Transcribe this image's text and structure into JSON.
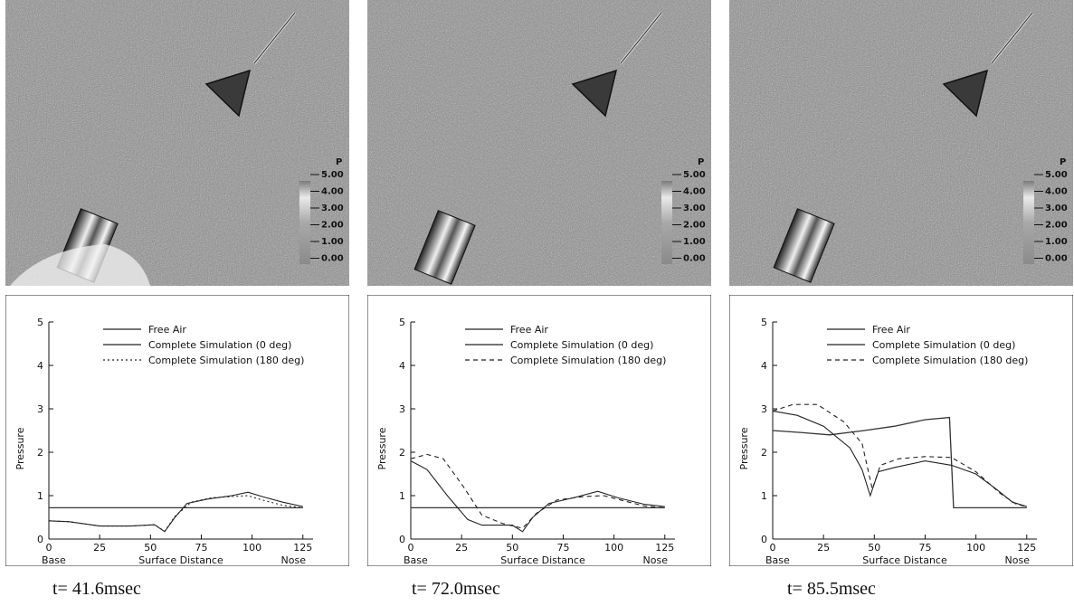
{
  "panels": [
    {
      "time_label": "t= 41.6msec",
      "colorbar": {
        "title": "P",
        "ticks": [
          "5.00",
          "4.00",
          "3.00",
          "2.00",
          "1.00",
          "0.00"
        ]
      }
    },
    {
      "time_label": "t= 72.0msec",
      "colorbar": {
        "title": "P",
        "ticks": [
          "5.00",
          "4.00",
          "3.00",
          "2.00",
          "1.00",
          "0.00"
        ]
      }
    },
    {
      "time_label": "t= 85.5msec",
      "colorbar": {
        "title": "P",
        "ticks": [
          "5.00",
          "4.00",
          "3.00",
          "2.00",
          "1.00",
          "0.00"
        ]
      }
    }
  ],
  "chart_data": [
    {
      "type": "line",
      "xlabel": "Surface Distance",
      "ylabel": "Pressure",
      "x_end_labels": [
        "Base",
        "Nose"
      ],
      "xlim": [
        0,
        130
      ],
      "ylim": [
        0,
        5
      ],
      "xticks": [
        "0",
        "25",
        "50",
        "75",
        "100",
        "125"
      ],
      "yticks": [
        "0",
        "1",
        "2",
        "3",
        "4",
        "5"
      ],
      "legend": [
        "Free Air",
        "Complete Simulation (0 deg)",
        "Complete Simulation (180 deg)"
      ],
      "series": [
        {
          "name": "Free Air",
          "style": "solid",
          "points": [
            [
              0,
              0.72
            ],
            [
              25,
              0.72
            ],
            [
              50,
              0.72
            ],
            [
              75,
              0.72
            ],
            [
              100,
              0.72
            ],
            [
              125,
              0.72
            ]
          ]
        },
        {
          "name": "Complete Simulation (0 deg)",
          "style": "solid",
          "points": [
            [
              0,
              0.42
            ],
            [
              10,
              0.4
            ],
            [
              25,
              0.3
            ],
            [
              40,
              0.3
            ],
            [
              52,
              0.33
            ],
            [
              57,
              0.17
            ],
            [
              62,
              0.5
            ],
            [
              68,
              0.82
            ],
            [
              78,
              0.92
            ],
            [
              90,
              1.0
            ],
            [
              98,
              1.08
            ],
            [
              105,
              0.98
            ],
            [
              115,
              0.85
            ],
            [
              125,
              0.75
            ]
          ]
        },
        {
          "name": "Complete Simulation (180 deg)",
          "style": "dotted",
          "points": [
            [
              0,
              0.42
            ],
            [
              10,
              0.4
            ],
            [
              25,
              0.3
            ],
            [
              40,
              0.3
            ],
            [
              52,
              0.33
            ],
            [
              57,
              0.18
            ],
            [
              62,
              0.52
            ],
            [
              70,
              0.85
            ],
            [
              80,
              0.95
            ],
            [
              90,
              0.98
            ],
            [
              98,
              1.0
            ],
            [
              105,
              0.9
            ],
            [
              115,
              0.78
            ],
            [
              125,
              0.72
            ]
          ]
        }
      ]
    },
    {
      "type": "line",
      "xlabel": "Surface Distance",
      "ylabel": "Pressure",
      "x_end_labels": [
        "Base",
        "Nose"
      ],
      "xlim": [
        0,
        130
      ],
      "ylim": [
        0,
        5
      ],
      "xticks": [
        "0",
        "25",
        "50",
        "75",
        "100",
        "125"
      ],
      "yticks": [
        "0",
        "1",
        "2",
        "3",
        "4",
        "5"
      ],
      "legend": [
        "Free Air",
        "Complete Simulation (0 deg)",
        "Complete Simulation (180 deg)"
      ],
      "series": [
        {
          "name": "Free Air",
          "style": "solid",
          "points": [
            [
              0,
              0.72
            ],
            [
              25,
              0.72
            ],
            [
              50,
              0.72
            ],
            [
              75,
              0.72
            ],
            [
              100,
              0.72
            ],
            [
              125,
              0.72
            ]
          ]
        },
        {
          "name": "Complete Simulation (0 deg)",
          "style": "solid",
          "points": [
            [
              0,
              1.8
            ],
            [
              8,
              1.6
            ],
            [
              18,
              1.0
            ],
            [
              28,
              0.45
            ],
            [
              35,
              0.32
            ],
            [
              50,
              0.32
            ],
            [
              55,
              0.17
            ],
            [
              60,
              0.5
            ],
            [
              68,
              0.82
            ],
            [
              80,
              0.95
            ],
            [
              92,
              1.1
            ],
            [
              102,
              0.95
            ],
            [
              115,
              0.8
            ],
            [
              125,
              0.75
            ]
          ]
        },
        {
          "name": "Complete Simulation (180 deg)",
          "style": "dashed",
          "points": [
            [
              0,
              1.85
            ],
            [
              8,
              1.95
            ],
            [
              16,
              1.85
            ],
            [
              26,
              1.2
            ],
            [
              35,
              0.55
            ],
            [
              45,
              0.36
            ],
            [
              55,
              0.25
            ],
            [
              62,
              0.6
            ],
            [
              72,
              0.9
            ],
            [
              85,
              0.98
            ],
            [
              95,
              1.0
            ],
            [
              105,
              0.88
            ],
            [
              115,
              0.76
            ],
            [
              125,
              0.72
            ]
          ]
        }
      ]
    },
    {
      "type": "line",
      "xlabel": "Surface Distance",
      "ylabel": "Pressure",
      "x_end_labels": [
        "Base",
        "Nose"
      ],
      "xlim": [
        0,
        130
      ],
      "ylim": [
        0,
        5
      ],
      "xticks": [
        "0",
        "25",
        "50",
        "75",
        "100",
        "125"
      ],
      "yticks": [
        "0",
        "1",
        "2",
        "3",
        "4",
        "5"
      ],
      "legend": [
        "Free Air",
        "Complete Simulation (0 deg)",
        "Complete Simulation (180 deg)"
      ],
      "series": [
        {
          "name": "Free Air",
          "style": "solid",
          "points": [
            [
              0,
              2.5
            ],
            [
              15,
              2.45
            ],
            [
              28,
              2.4
            ],
            [
              45,
              2.5
            ],
            [
              60,
              2.6
            ],
            [
              75,
              2.75
            ],
            [
              87,
              2.8
            ],
            [
              89,
              0.72
            ],
            [
              100,
              0.72
            ],
            [
              125,
              0.72
            ]
          ]
        },
        {
          "name": "Complete Simulation (0 deg)",
          "style": "solid",
          "points": [
            [
              0,
              2.95
            ],
            [
              12,
              2.85
            ],
            [
              25,
              2.6
            ],
            [
              38,
              2.1
            ],
            [
              44,
              1.6
            ],
            [
              48,
              1.0
            ],
            [
              52,
              1.55
            ],
            [
              60,
              1.65
            ],
            [
              75,
              1.8
            ],
            [
              88,
              1.7
            ],
            [
              100,
              1.5
            ],
            [
              110,
              1.15
            ],
            [
              118,
              0.85
            ],
            [
              125,
              0.75
            ]
          ]
        },
        {
          "name": "Complete Simulation (180 deg)",
          "style": "dashed",
          "points": [
            [
              0,
              2.95
            ],
            [
              10,
              3.1
            ],
            [
              22,
              3.1
            ],
            [
              35,
              2.7
            ],
            [
              44,
              2.2
            ],
            [
              49,
              1.15
            ],
            [
              53,
              1.7
            ],
            [
              62,
              1.85
            ],
            [
              75,
              1.9
            ],
            [
              88,
              1.88
            ],
            [
              100,
              1.55
            ],
            [
              112,
              1.05
            ],
            [
              120,
              0.8
            ],
            [
              125,
              0.75
            ]
          ]
        }
      ]
    }
  ]
}
